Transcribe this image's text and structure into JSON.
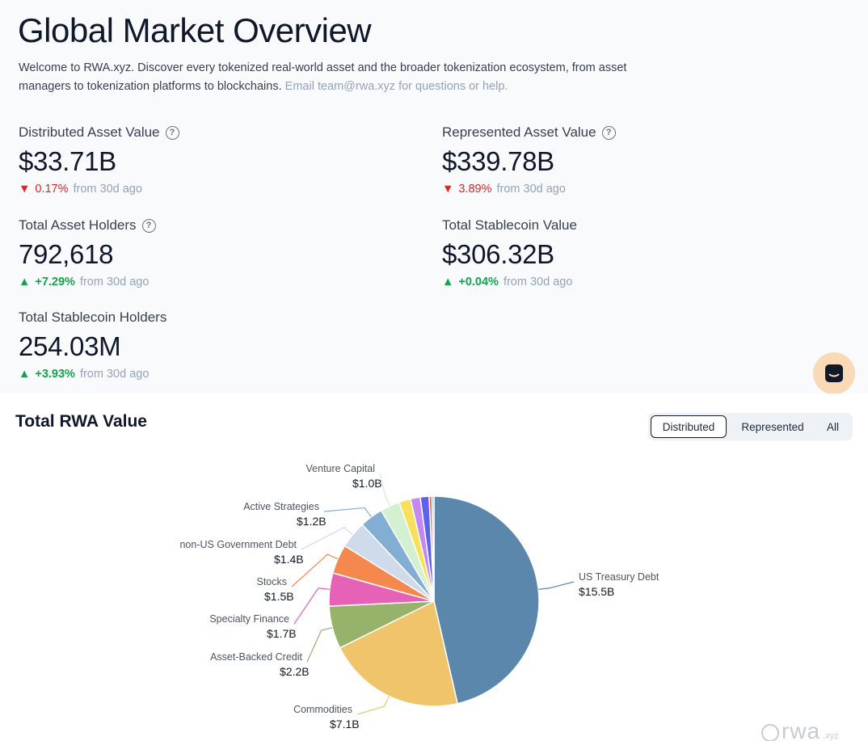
{
  "header": {
    "title": "Global Market Overview",
    "intro": "Welcome to RWA.xyz. Discover every tokenized real-world asset and the broader tokenization ecosystem, from asset managers to tokenization platforms to blockchains.",
    "intro_contact": "Email team@rwa.xyz for questions or help."
  },
  "metrics": [
    {
      "label": "Distributed Asset Value",
      "value": "$33.71B",
      "change": "0.17%",
      "direction": "down",
      "since": "from 30d ago",
      "help": true
    },
    {
      "label": "Represented Asset Value",
      "value": "$339.78B",
      "change": "3.89%",
      "direction": "down",
      "since": "from 30d ago",
      "help": true
    },
    {
      "label": "Total Asset Holders",
      "value": "792,618",
      "change": "+7.29%",
      "direction": "up",
      "since": "from 30d ago",
      "help": true
    },
    {
      "label": "Total Stablecoin Value",
      "value": "$306.32B",
      "change": "+0.04%",
      "direction": "up",
      "since": "from 30d ago",
      "help": false
    },
    {
      "label": "Total Stablecoin Holders",
      "value": "254.03M",
      "change": "+3.93%",
      "direction": "up",
      "since": "from 30d ago",
      "help": false
    }
  ],
  "icons": {
    "help": "?",
    "down": "▼",
    "up": "▲",
    "chat": "chat-icon",
    "globe": "globe-icon"
  },
  "chart_section": {
    "title": "Total RWA Value",
    "toggle": {
      "options": [
        "Distributed",
        "Represented",
        "All"
      ],
      "selected": "Distributed"
    }
  },
  "colors": {
    "accent_down": "#dc2626",
    "accent_up": "#16a34a",
    "chat_bg": "#f9d9b6"
  },
  "chart_data": {
    "type": "pie",
    "title": "",
    "slices": [
      {
        "name": "US Treasury Debt",
        "label": "$15.5B",
        "value": 15.5,
        "color": "#5a87ab"
      },
      {
        "name": "Commodities",
        "label": "$7.1B",
        "value": 7.1,
        "color": "#efc46b"
      },
      {
        "name": "Asset-Backed Credit",
        "label": "$2.2B",
        "value": 2.2,
        "color": "#96b26b"
      },
      {
        "name": "Specialty Finance",
        "label": "$1.7B",
        "value": 1.7,
        "color": "#e562b7"
      },
      {
        "name": "Stocks",
        "label": "$1.5B",
        "value": 1.5,
        "color": "#f4884f"
      },
      {
        "name": "non-US Government Debt",
        "label": "$1.4B",
        "value": 1.4,
        "color": "#cfdaea"
      },
      {
        "name": "Active Strategies",
        "label": "$1.2B",
        "value": 1.2,
        "color": "#82aed3"
      },
      {
        "name": "Venture Capital",
        "label": "$1.0B",
        "value": 1.0,
        "color": "#d3f1d0"
      },
      {
        "name": "",
        "label": "",
        "value": 0.6,
        "color": "#f7e15a"
      },
      {
        "name": "",
        "label": "",
        "value": 0.5,
        "color": "#c488f3"
      },
      {
        "name": "",
        "label": "",
        "value": 0.45,
        "color": "#5c63e8"
      },
      {
        "name": "",
        "label": "",
        "value": 0.15,
        "color": "#e57373"
      },
      {
        "name": "",
        "label": "",
        "value": 0.1,
        "color": "#a0a0a0"
      }
    ]
  },
  "watermark": {
    "text": "rwa",
    "suffix": ".xyz"
  }
}
